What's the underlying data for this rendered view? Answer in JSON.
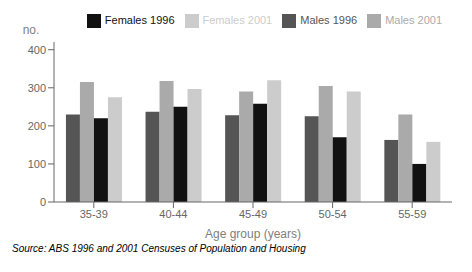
{
  "chart_data": {
    "type": "bar",
    "categories": [
      "35-39",
      "40-44",
      "45-49",
      "50-54",
      "55-59"
    ],
    "series": [
      {
        "name": "Males 1996",
        "color": "#555555",
        "values": [
          230,
          237,
          228,
          225,
          163
        ]
      },
      {
        "name": "Males 2001",
        "color": "#aaaaaa",
        "values": [
          315,
          318,
          290,
          305,
          230
        ]
      },
      {
        "name": "Females 1996",
        "color": "#111111",
        "values": [
          220,
          250,
          258,
          170,
          100
        ]
      },
      {
        "name": "Females 2001",
        "color": "#cccccc",
        "values": [
          275,
          297,
          320,
          290,
          158
        ]
      }
    ],
    "xlabel": "Age group (years)",
    "ylabel": "no.",
    "ylim": [
      0,
      420
    ],
    "yticks": [
      0,
      100,
      200,
      300,
      400
    ],
    "legend": "upper right",
    "grid": false,
    "annotations": [
      "Source: ABS 1996 and 2001 Censuses of Population and Housing"
    ]
  }
}
